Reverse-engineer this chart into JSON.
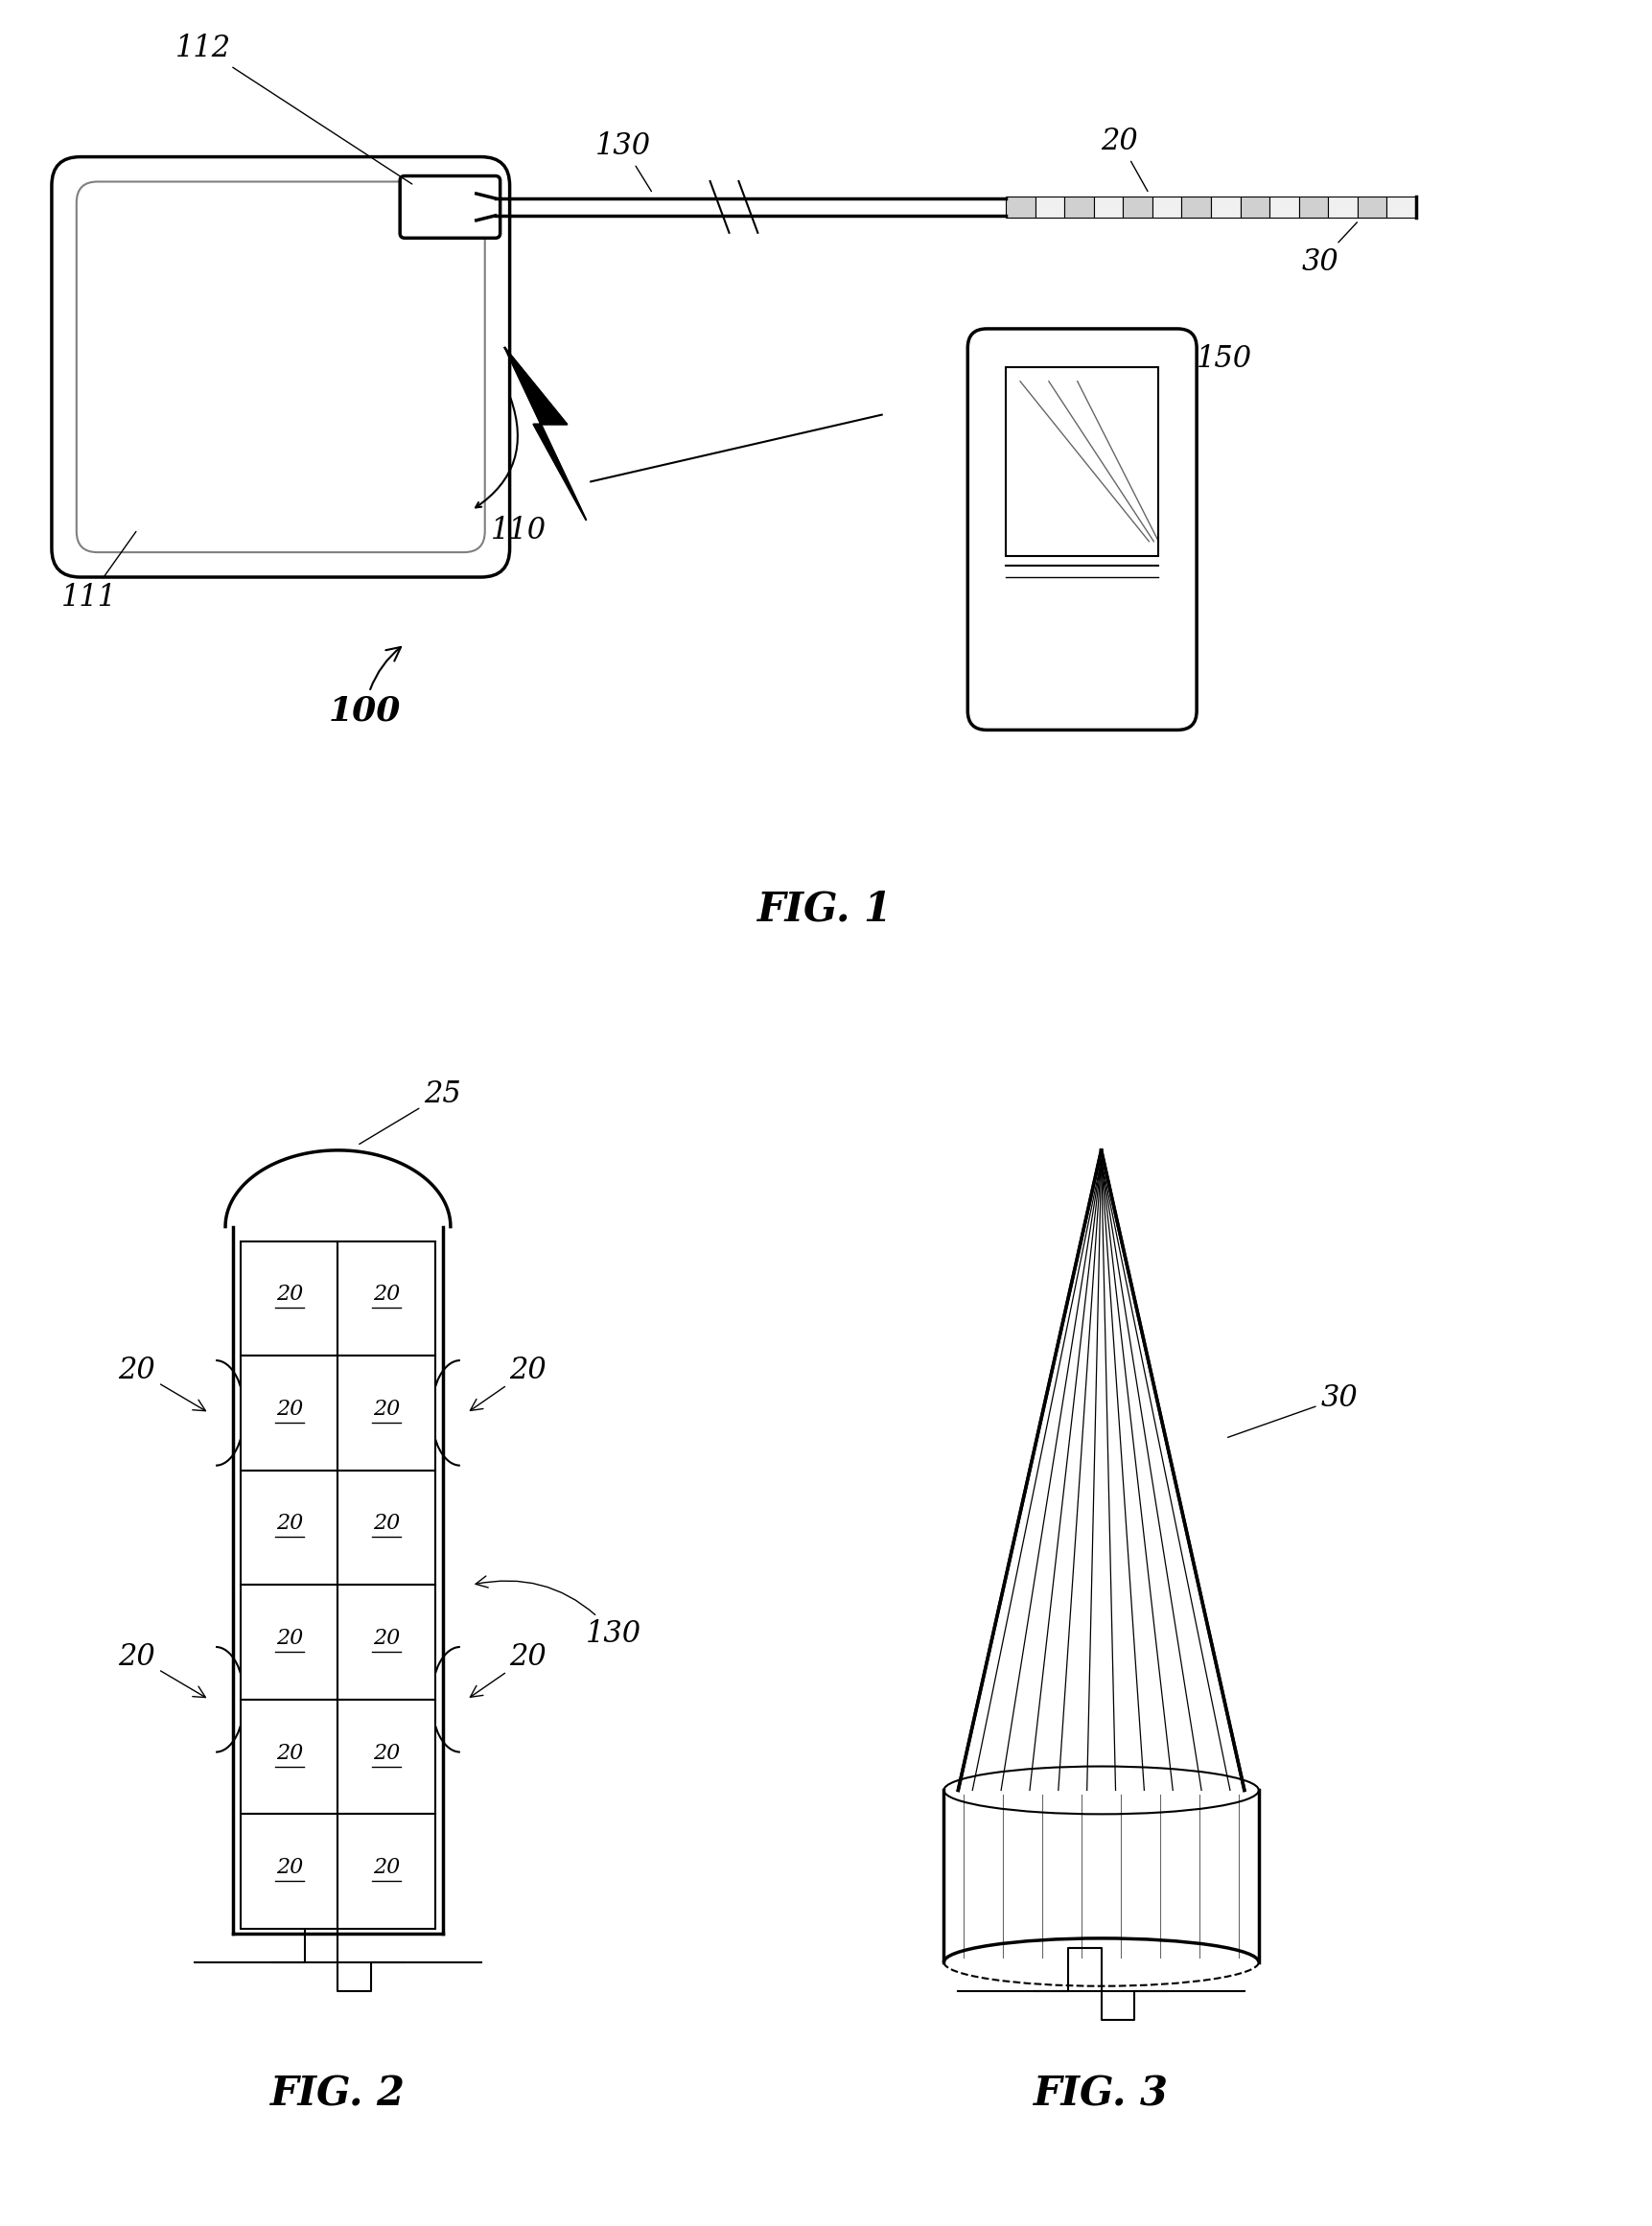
{
  "bg_color": "#ffffff",
  "line_color": "#000000",
  "fig_width": 17.23,
  "fig_height": 23.22,
  "fig1_label": "FIG. 1",
  "fig2_label": "FIG. 2",
  "fig3_label": "FIG. 3"
}
